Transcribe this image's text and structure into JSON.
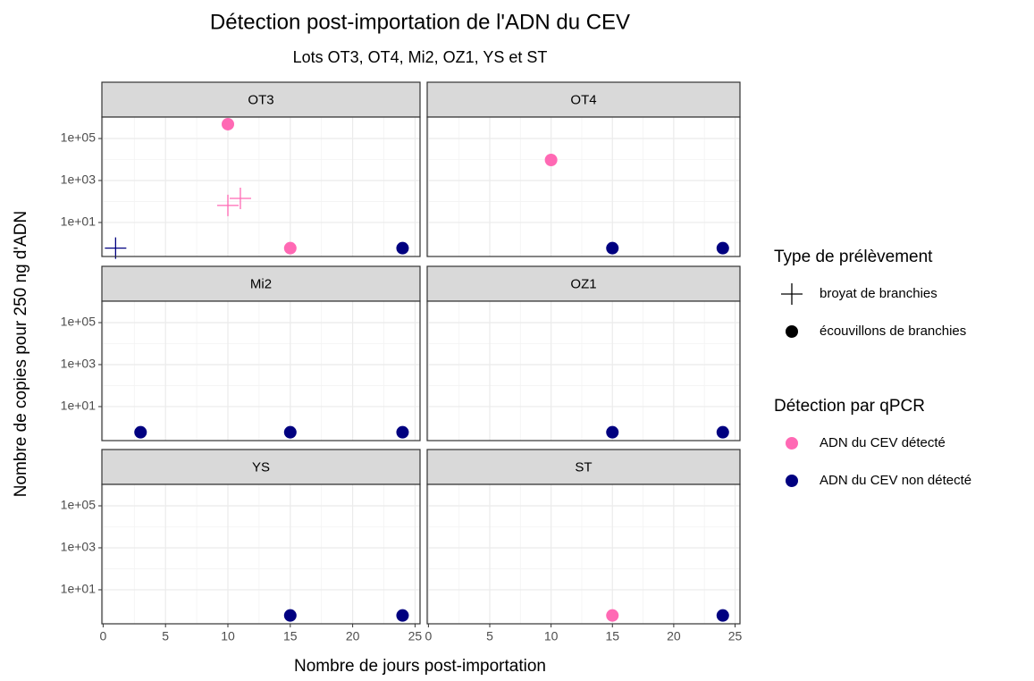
{
  "chart_data": {
    "type": "scatter",
    "title": "Détection post-importation de l'ADN du CEV",
    "subtitle": "Lots OT3, OT4, Mi2, OZ1, YS et ST",
    "x_label": "Nombre de jours post-importation",
    "y_label": "Nombre de copies pour 250 ng d'ADN",
    "log_y": true,
    "grid": true,
    "legend_position": "right",
    "xlim": [
      -0.1,
      25.4
    ],
    "xticks": [
      0,
      5,
      10,
      15,
      20,
      25
    ],
    "ylim": [
      0.24,
      1050000
    ],
    "yticks": [
      {
        "value": 10,
        "label": "1e+01"
      },
      {
        "value": 1000,
        "label": "1e+03"
      },
      {
        "value": 100000,
        "label": "1e+05"
      }
    ],
    "legends": [
      {
        "title": "Type de prélèvement",
        "entries": [
          {
            "label": "broyat de branchies",
            "shape": "plus"
          },
          {
            "label": "écouvillons de branchies",
            "shape": "circle"
          }
        ]
      },
      {
        "title": "Détection par qPCR",
        "entries": [
          {
            "label": "ADN du CEV détecté",
            "color": "#ff69b4"
          },
          {
            "label": "ADN du CEV non détecté",
            "color": "#000080"
          }
        ]
      }
    ],
    "panels": [
      {
        "name": "OT3",
        "x": [
          10,
          10,
          11,
          1,
          15,
          24
        ],
        "values": [
          480000,
          65,
          140,
          0.6,
          0.6,
          0.6
        ],
        "shapes": [
          "circle",
          "plus",
          "plus",
          "plus",
          "circle",
          "circle"
        ],
        "colors": [
          "#ff69b4",
          "#ff69b4",
          "#ff69b4",
          "#000080",
          "#ff69b4",
          "#000080"
        ]
      },
      {
        "name": "OT4",
        "x": [
          10,
          15,
          24
        ],
        "values": [
          9500,
          0.6,
          0.6
        ],
        "shapes": [
          "circle",
          "circle",
          "circle"
        ],
        "colors": [
          "#ff69b4",
          "#000080",
          "#000080"
        ]
      },
      {
        "name": "Mi2",
        "x": [
          3,
          15,
          24
        ],
        "values": [
          0.6,
          0.6,
          0.6
        ],
        "shapes": [
          "circle",
          "circle",
          "circle"
        ],
        "colors": [
          "#000080",
          "#000080",
          "#000080"
        ]
      },
      {
        "name": "OZ1",
        "x": [
          15,
          24
        ],
        "values": [
          0.6,
          0.6
        ],
        "shapes": [
          "circle",
          "circle"
        ],
        "colors": [
          "#000080",
          "#000080"
        ]
      },
      {
        "name": "YS",
        "x": [
          15,
          24
        ],
        "values": [
          0.6,
          0.6
        ],
        "shapes": [
          "circle",
          "circle"
        ],
        "colors": [
          "#000080",
          "#000080"
        ]
      },
      {
        "name": "ST",
        "x": [
          15,
          24
        ],
        "values": [
          0.6,
          0.6
        ],
        "shapes": [
          "circle",
          "circle"
        ],
        "colors": [
          "#ff69b4",
          "#000080"
        ]
      }
    ]
  }
}
